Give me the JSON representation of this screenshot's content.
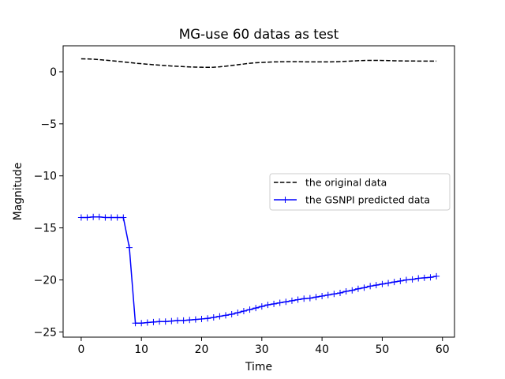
{
  "chart_data": {
    "type": "line",
    "title": "MG-use 60 datas as test",
    "xlabel": "Time",
    "ylabel": "Magnitude",
    "xlim": [
      -3,
      62
    ],
    "ylim": [
      -25.5,
      2.5
    ],
    "xticks": [
      0,
      10,
      20,
      30,
      40,
      50,
      60
    ],
    "yticks": [
      0,
      -5,
      -10,
      -15,
      -20,
      -25
    ],
    "ytick_labels": [
      "0",
      "−5",
      "−10",
      "−15",
      "−20",
      "−25"
    ],
    "grid": false,
    "legend_position": "center-right",
    "series": [
      {
        "name": "the original data",
        "color": "#000000",
        "line_style": "dashed",
        "marker": "none",
        "x": [
          0,
          1,
          2,
          3,
          4,
          5,
          6,
          7,
          8,
          9,
          10,
          11,
          12,
          13,
          14,
          15,
          16,
          17,
          18,
          19,
          20,
          21,
          22,
          23,
          24,
          25,
          26,
          27,
          28,
          29,
          30,
          31,
          32,
          33,
          34,
          35,
          36,
          37,
          38,
          39,
          40,
          41,
          42,
          43,
          44,
          45,
          46,
          47,
          48,
          49,
          50,
          51,
          52,
          53,
          54,
          55,
          56,
          57,
          58,
          59
        ],
        "y": [
          1.25,
          1.24,
          1.21,
          1.17,
          1.12,
          1.07,
          1.01,
          0.95,
          0.89,
          0.83,
          0.78,
          0.73,
          0.68,
          0.64,
          0.6,
          0.56,
          0.53,
          0.5,
          0.47,
          0.45,
          0.44,
          0.43,
          0.44,
          0.48,
          0.54,
          0.61,
          0.68,
          0.75,
          0.82,
          0.87,
          0.9,
          0.93,
          0.95,
          0.96,
          0.97,
          0.97,
          0.97,
          0.96,
          0.95,
          0.95,
          0.95,
          0.95,
          0.96,
          0.98,
          1.01,
          1.04,
          1.07,
          1.09,
          1.1,
          1.1,
          1.09,
          1.08,
          1.06,
          1.05,
          1.04,
          1.04,
          1.03,
          1.03,
          1.03,
          1.03
        ]
      },
      {
        "name": "the GSNPI predicted data",
        "color": "#0000ff",
        "line_style": "solid",
        "marker": "+",
        "x": [
          0,
          1,
          2,
          3,
          4,
          5,
          6,
          7,
          8,
          9,
          10,
          11,
          12,
          13,
          14,
          15,
          16,
          17,
          18,
          19,
          20,
          21,
          22,
          23,
          24,
          25,
          26,
          27,
          28,
          29,
          30,
          31,
          32,
          33,
          34,
          35,
          36,
          37,
          38,
          39,
          40,
          41,
          42,
          43,
          44,
          45,
          46,
          47,
          48,
          49,
          50,
          51,
          52,
          53,
          54,
          55,
          56,
          57,
          58,
          59
        ],
        "y": [
          -14.0,
          -14.0,
          -13.95,
          -13.95,
          -14.0,
          -14.0,
          -14.0,
          -14.0,
          -16.9,
          -24.15,
          -24.15,
          -24.1,
          -24.05,
          -24.0,
          -24.0,
          -23.95,
          -23.9,
          -23.9,
          -23.85,
          -23.8,
          -23.75,
          -23.7,
          -23.6,
          -23.5,
          -23.4,
          -23.3,
          -23.15,
          -23.0,
          -22.85,
          -22.7,
          -22.55,
          -22.4,
          -22.3,
          -22.2,
          -22.1,
          -22.0,
          -21.9,
          -21.8,
          -21.75,
          -21.65,
          -21.55,
          -21.45,
          -21.35,
          -21.25,
          -21.1,
          -21.0,
          -20.85,
          -20.75,
          -20.6,
          -20.5,
          -20.4,
          -20.3,
          -20.2,
          -20.1,
          -20.0,
          -19.95,
          -19.85,
          -19.8,
          -19.75,
          -19.65
        ]
      }
    ]
  }
}
